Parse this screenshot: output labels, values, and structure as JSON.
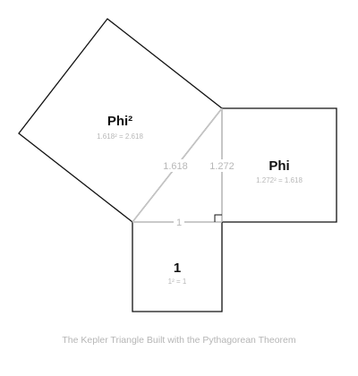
{
  "squares": {
    "large": {
      "label": "Phi²",
      "equation": "1.618² = 2.618"
    },
    "medium": {
      "label": "Phi",
      "equation": "1.272² = 1.618"
    },
    "small": {
      "label": "1",
      "equation": "1² = 1"
    }
  },
  "triangle_sides": {
    "hypotenuse": "1.618",
    "vertical_leg": "1.272",
    "horizontal_leg": "1"
  },
  "caption": "The Kepler Triangle Built with the Pythagorean Theorem",
  "colors": {
    "square_stroke": "#111111",
    "triangle_stroke": "#cfcfcf",
    "muted_text": "#b8b8b8"
  }
}
